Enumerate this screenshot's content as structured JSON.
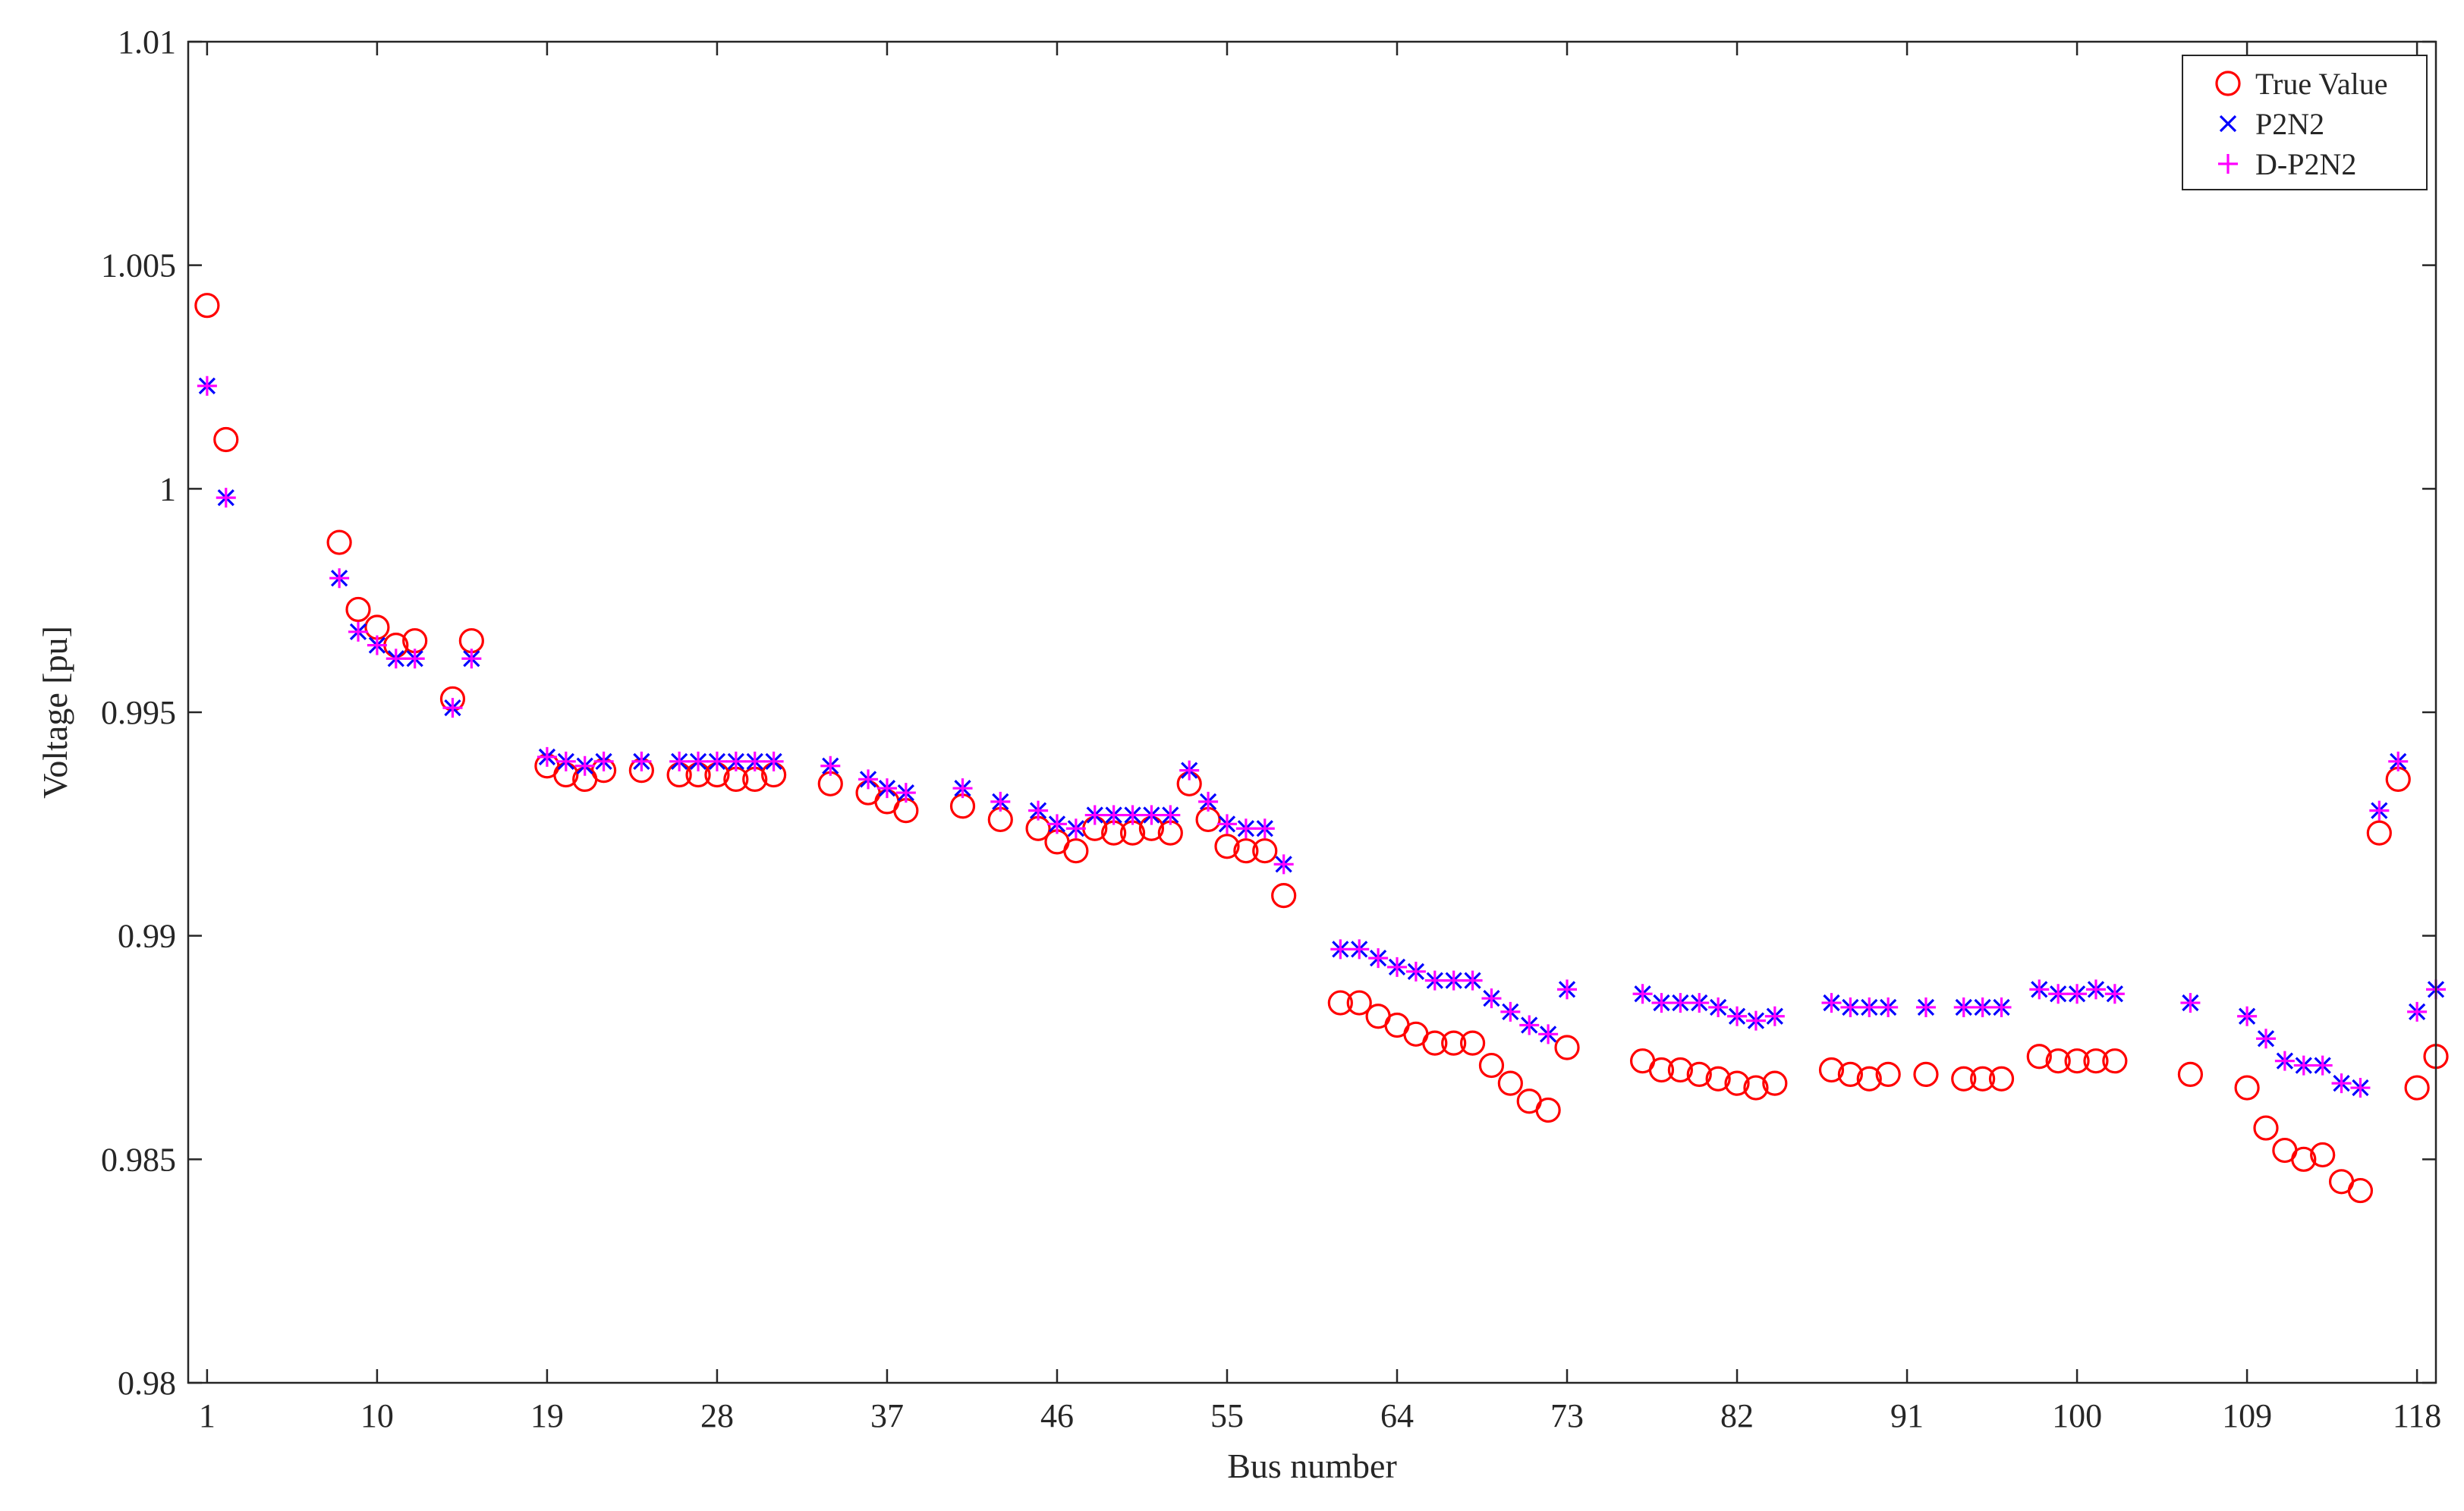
{
  "chart_data": {
    "type": "scatter",
    "xlabel": "Bus number",
    "ylabel": "Voltage [pu]",
    "xlim": [
      0,
      119
    ],
    "ylim": [
      0.98,
      1.01
    ],
    "x_ticks": [
      1,
      10,
      19,
      28,
      37,
      46,
      55,
      64,
      73,
      82,
      91,
      100,
      109,
      118
    ],
    "y_ticks": [
      0.98,
      0.985,
      0.99,
      0.995,
      1,
      1.005,
      1.01
    ],
    "x_tick_labels": [
      "1",
      "10",
      "19",
      "28",
      "37",
      "46",
      "55",
      "64",
      "73",
      "82",
      "91",
      "100",
      "109",
      "118"
    ],
    "y_tick_labels": [
      "0.98",
      "0.985",
      "0.99",
      "0.995",
      "1",
      "1.005",
      "1.01"
    ],
    "grid": false,
    "legend_position": "top-right",
    "series": [
      {
        "name": "True Value",
        "marker": "circle",
        "color": "#ff0000",
        "x": [
          1,
          2,
          8,
          9,
          10,
          11,
          12,
          14,
          15,
          19,
          20,
          21,
          22,
          24,
          26,
          27,
          28,
          29,
          30,
          31,
          34,
          36,
          37,
          38,
          41,
          43,
          45,
          46,
          47,
          48,
          49,
          50,
          51,
          52,
          53,
          54,
          55,
          56,
          57,
          58,
          61,
          62,
          63,
          64,
          65,
          66,
          67,
          68,
          69,
          70,
          71,
          72,
          73,
          77,
          78,
          79,
          80,
          81,
          82,
          83,
          84,
          87,
          88,
          89,
          90,
          92,
          94,
          95,
          96,
          98,
          99,
          100,
          101,
          102,
          106,
          109,
          110,
          111,
          112,
          113,
          114,
          115,
          116,
          117,
          118,
          119
        ],
        "y": [
          1.0041,
          1.0011,
          0.9988,
          0.9973,
          0.9969,
          0.9965,
          0.9966,
          0.9953,
          0.9966,
          0.9938,
          0.9936,
          0.9935,
          0.9937,
          0.9937,
          0.9936,
          0.9936,
          0.9936,
          0.9935,
          0.9935,
          0.9936,
          0.9934,
          0.9932,
          0.993,
          0.9928,
          0.9929,
          0.9926,
          0.9924,
          0.9921,
          0.9919,
          0.9924,
          0.9923,
          0.9923,
          0.9924,
          0.9923,
          0.9934,
          0.9926,
          0.992,
          0.9919,
          0.9919,
          0.9909,
          0.9885,
          0.9885,
          0.9882,
          0.988,
          0.9878,
          0.9876,
          0.9876,
          0.9876,
          0.9871,
          0.9867,
          0.9863,
          0.9861,
          0.9875,
          0.9872,
          0.987,
          0.987,
          0.9869,
          0.9868,
          0.9867,
          0.9866,
          0.9867,
          0.987,
          0.9869,
          0.9868,
          0.9869,
          0.9869,
          0.9868,
          0.9868,
          0.9868,
          0.9873,
          0.9872,
          0.9872,
          0.9872,
          0.9872,
          0.9869,
          0.9866,
          0.9857,
          0.9852,
          0.985,
          0.9851,
          0.9845,
          0.9843,
          0.9923,
          0.9935,
          0.9866,
          0.9873
        ]
      },
      {
        "name": "P2N2",
        "marker": "x",
        "color": "#0000ff",
        "x": [
          1,
          2,
          8,
          9,
          10,
          11,
          12,
          14,
          15,
          19,
          20,
          21,
          22,
          24,
          26,
          27,
          28,
          29,
          30,
          31,
          34,
          36,
          37,
          38,
          41,
          43,
          45,
          46,
          47,
          48,
          49,
          50,
          51,
          52,
          53,
          54,
          55,
          56,
          57,
          58,
          61,
          62,
          63,
          64,
          65,
          66,
          67,
          68,
          69,
          70,
          71,
          72,
          73,
          77,
          78,
          79,
          80,
          81,
          82,
          83,
          84,
          87,
          88,
          89,
          90,
          92,
          94,
          95,
          96,
          98,
          99,
          100,
          101,
          102,
          106,
          109,
          110,
          111,
          112,
          113,
          114,
          115,
          116,
          117,
          118,
          119
        ],
        "y": [
          1.0023,
          0.9998,
          0.998,
          0.9968,
          0.9965,
          0.9962,
          0.9962,
          0.9951,
          0.9962,
          0.994,
          0.9939,
          0.9938,
          0.9939,
          0.9939,
          0.9939,
          0.9939,
          0.9939,
          0.9939,
          0.9939,
          0.9939,
          0.9938,
          0.9935,
          0.9933,
          0.9932,
          0.9933,
          0.993,
          0.9928,
          0.9925,
          0.9924,
          0.9927,
          0.9927,
          0.9927,
          0.9927,
          0.9927,
          0.9937,
          0.993,
          0.9925,
          0.9924,
          0.9924,
          0.9916,
          0.9897,
          0.9897,
          0.9895,
          0.9893,
          0.9892,
          0.989,
          0.989,
          0.989,
          0.9886,
          0.9883,
          0.988,
          0.9878,
          0.9888,
          0.9887,
          0.9885,
          0.9885,
          0.9885,
          0.9884,
          0.9882,
          0.9881,
          0.9882,
          0.9885,
          0.9884,
          0.9884,
          0.9884,
          0.9884,
          0.9884,
          0.9884,
          0.9884,
          0.9888,
          0.9887,
          0.9887,
          0.9888,
          0.9887,
          0.9885,
          0.9882,
          0.9877,
          0.9872,
          0.9871,
          0.9871,
          0.9867,
          0.9866,
          0.9928,
          0.9939,
          0.9883,
          0.9888
        ]
      },
      {
        "name": "D-P2N2",
        "marker": "plus",
        "color": "#ff00ff",
        "x": [
          1,
          2,
          8,
          9,
          10,
          11,
          12,
          14,
          15,
          19,
          20,
          21,
          22,
          24,
          26,
          27,
          28,
          29,
          30,
          31,
          34,
          36,
          37,
          38,
          41,
          43,
          45,
          46,
          47,
          48,
          49,
          50,
          51,
          52,
          53,
          54,
          55,
          56,
          57,
          58,
          61,
          62,
          63,
          64,
          65,
          66,
          67,
          68,
          69,
          70,
          71,
          72,
          73,
          77,
          78,
          79,
          80,
          81,
          82,
          83,
          84,
          87,
          88,
          89,
          90,
          92,
          94,
          95,
          96,
          98,
          99,
          100,
          101,
          102,
          106,
          109,
          110,
          111,
          112,
          113,
          114,
          115,
          116,
          117,
          118,
          119
        ],
        "y": [
          1.0023,
          0.9998,
          0.998,
          0.9968,
          0.9965,
          0.9962,
          0.9962,
          0.9951,
          0.9962,
          0.994,
          0.9939,
          0.9938,
          0.9939,
          0.9939,
          0.9939,
          0.9939,
          0.9939,
          0.9939,
          0.9939,
          0.9939,
          0.9938,
          0.9935,
          0.9933,
          0.9932,
          0.9933,
          0.993,
          0.9928,
          0.9925,
          0.9924,
          0.9927,
          0.9927,
          0.9927,
          0.9927,
          0.9927,
          0.9937,
          0.993,
          0.9925,
          0.9924,
          0.9924,
          0.9916,
          0.9897,
          0.9897,
          0.9895,
          0.9893,
          0.9892,
          0.989,
          0.989,
          0.989,
          0.9886,
          0.9883,
          0.988,
          0.9878,
          0.9888,
          0.9887,
          0.9885,
          0.9885,
          0.9885,
          0.9884,
          0.9882,
          0.9881,
          0.9882,
          0.9885,
          0.9884,
          0.9884,
          0.9884,
          0.9884,
          0.9884,
          0.9884,
          0.9884,
          0.9888,
          0.9887,
          0.9887,
          0.9888,
          0.9887,
          0.9885,
          0.9882,
          0.9877,
          0.9872,
          0.9871,
          0.9871,
          0.9867,
          0.9866,
          0.9928,
          0.9939,
          0.9883,
          0.9888
        ]
      }
    ]
  }
}
